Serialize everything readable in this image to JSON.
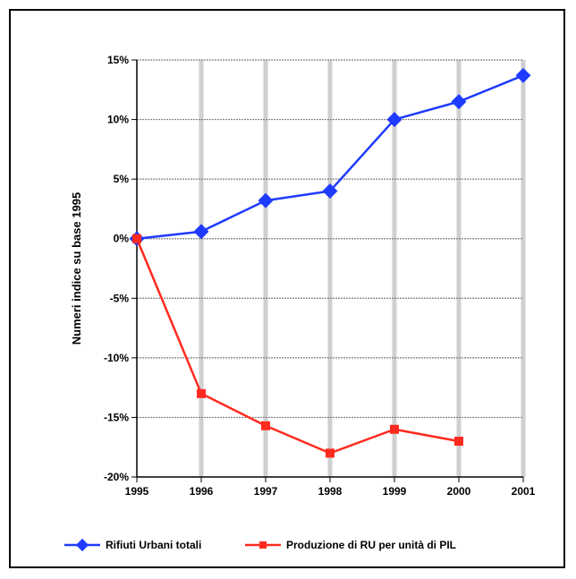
{
  "chart_data": {
    "type": "line",
    "x": [
      "1995",
      "1996",
      "1997",
      "1998",
      "1999",
      "2000",
      "2001"
    ],
    "ylabel": "Numeri indice su base 1995",
    "ylim": [
      -20,
      15
    ],
    "yticks": [
      "15%",
      "10%",
      "5%",
      "0%",
      "-5%",
      "-10%",
      "-15%",
      "-20%"
    ],
    "yticks_values": [
      15,
      10,
      5,
      0,
      -5,
      -10,
      -15,
      -20
    ],
    "grid": true,
    "legend_position": "bottom",
    "series": [
      {
        "name": "Rifiuti Urbani totali",
        "color": "#1f3bff",
        "values": [
          0,
          0.6,
          3.2,
          4.0,
          10.0,
          11.5,
          13.7
        ]
      },
      {
        "name": "Produzione di RU per unità di PIL",
        "color": "#ff2a1f",
        "values": [
          0,
          -13.0,
          -15.7,
          -18.0,
          -16.0,
          -17.0,
          null
        ]
      }
    ]
  }
}
